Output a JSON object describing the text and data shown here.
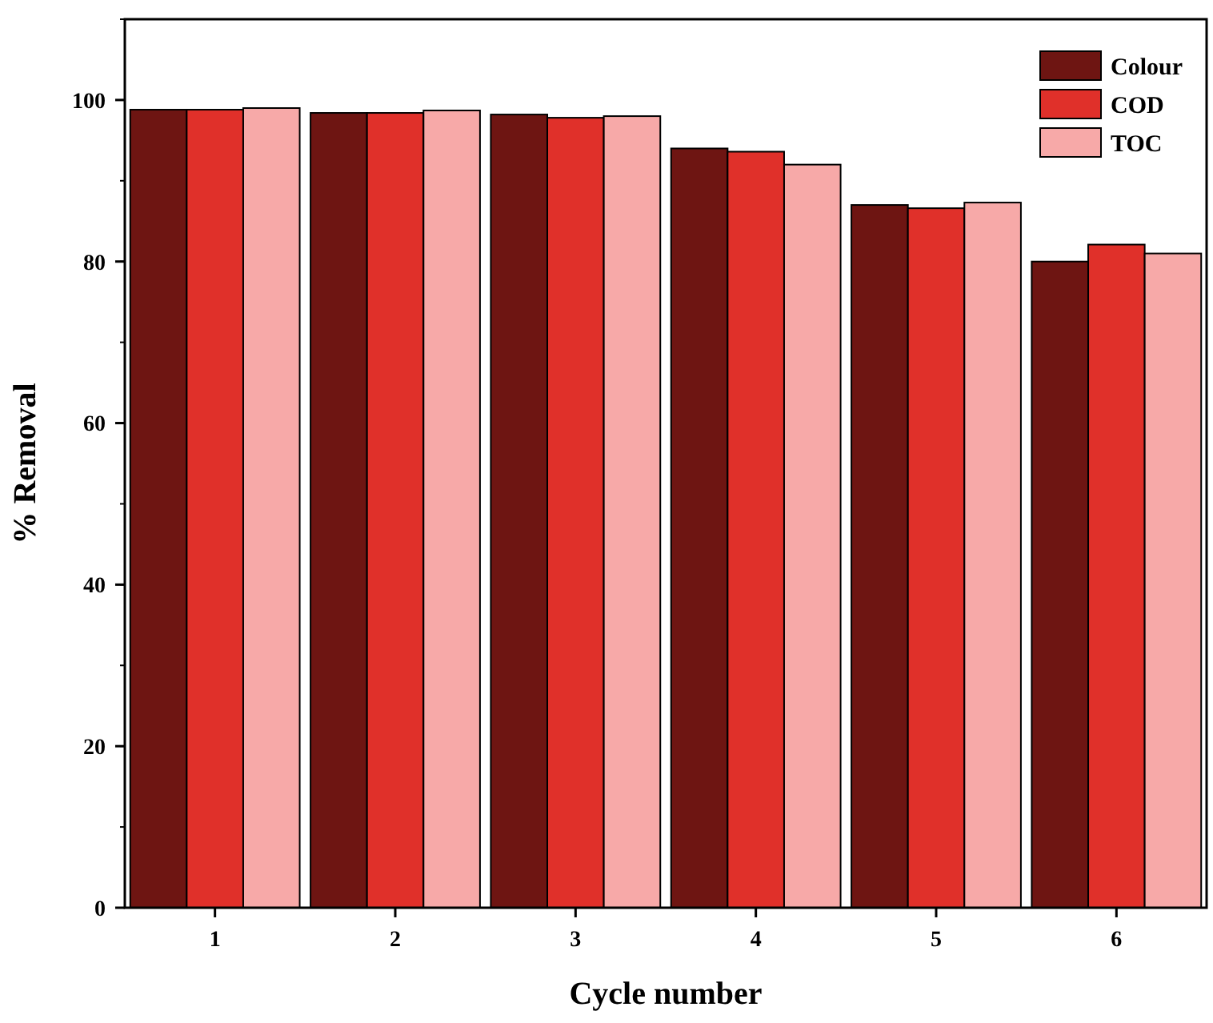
{
  "chart_data": {
    "type": "bar",
    "xlabel": "Cycle number",
    "ylabel": "% Removal",
    "categories": [
      "1",
      "2",
      "3",
      "4",
      "5",
      "6"
    ],
    "series": [
      {
        "name": "Colour",
        "color": "#6e1512",
        "values": [
          98.8,
          98.4,
          98.2,
          94.0,
          87.0,
          80.0
        ]
      },
      {
        "name": "COD",
        "color": "#e0302a",
        "values": [
          98.8,
          98.4,
          97.8,
          93.6,
          86.6,
          82.1
        ]
      },
      {
        "name": "TOC",
        "color": "#f7a9a8",
        "values": [
          99.0,
          98.7,
          98.0,
          92.0,
          87.3,
          81.0
        ]
      }
    ],
    "ylim": [
      0,
      110
    ],
    "yticks": [
      0,
      20,
      40,
      60,
      80,
      100
    ],
    "grid": false,
    "legend": "top right"
  }
}
